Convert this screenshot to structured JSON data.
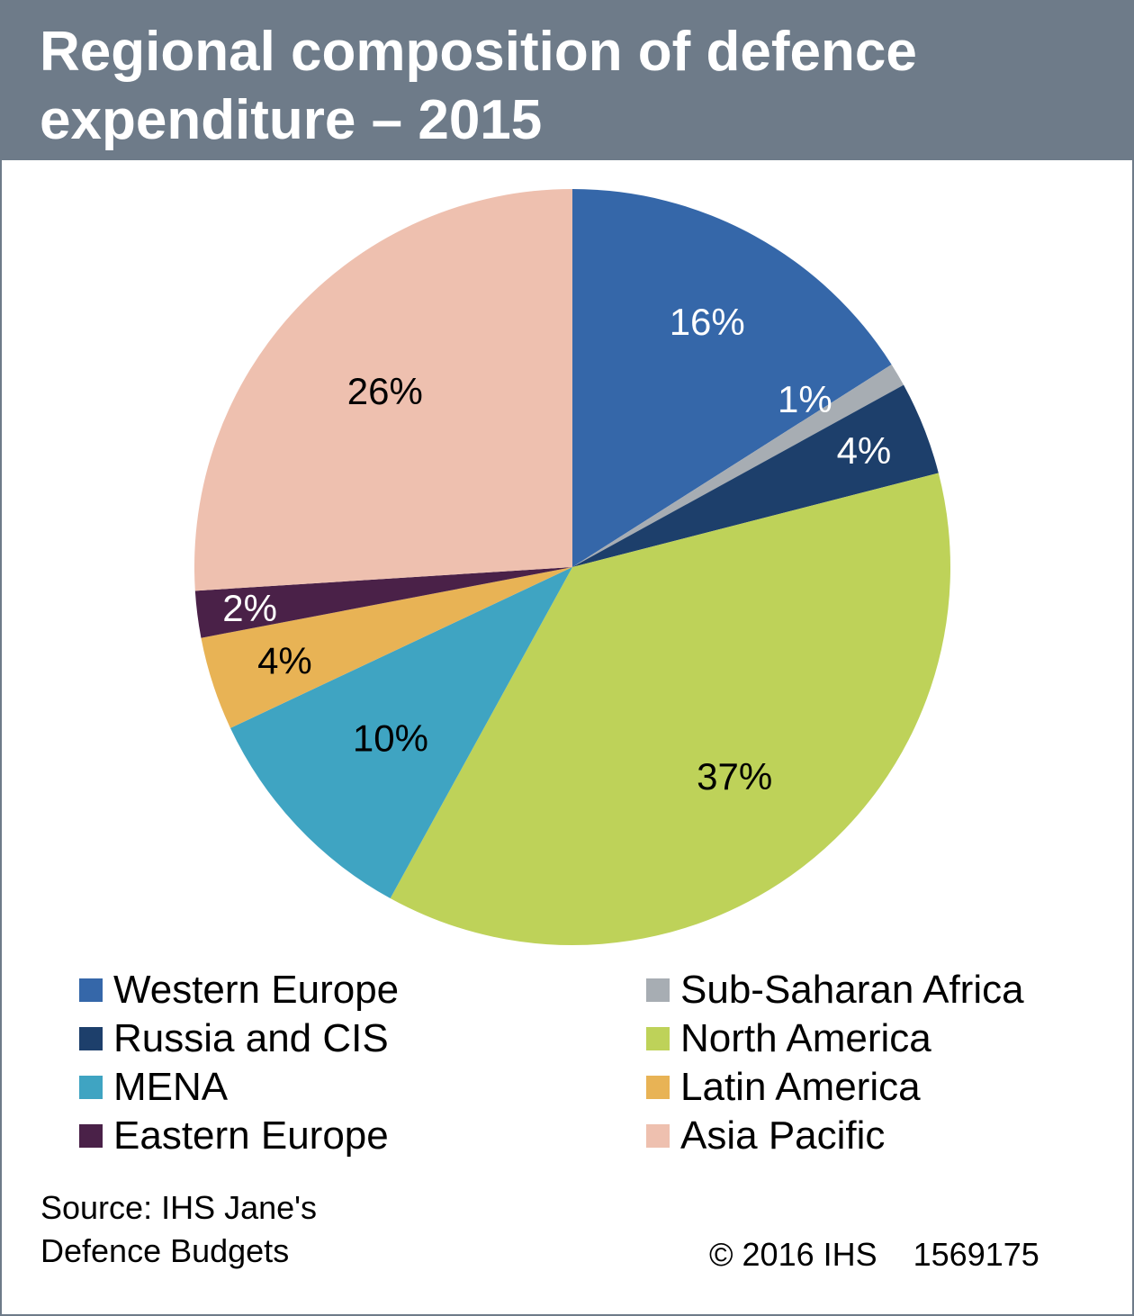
{
  "chart_data": {
    "type": "pie",
    "title": "Regional composition of defence expenditure – 2015",
    "start_angle_deg": 0,
    "direction": "clockwise",
    "legend_position": "bottom",
    "slices": [
      {
        "name": "Western Europe",
        "value": 16,
        "label": "16%",
        "color": "#3567a9",
        "label_color": "#ffffff"
      },
      {
        "name": "Sub-Saharan Africa",
        "value": 1,
        "label": "1%",
        "color": "#a7adb3",
        "label_color": "#ffffff"
      },
      {
        "name": "Russia and CIS",
        "value": 4,
        "label": "4%",
        "color": "#1d3f6b",
        "label_color": "#ffffff"
      },
      {
        "name": "North America",
        "value": 37,
        "label": "37%",
        "color": "#bed259",
        "label_color": "#000000"
      },
      {
        "name": "MENA",
        "value": 10,
        "label": "10%",
        "color": "#3fa4c2",
        "label_color": "#000000"
      },
      {
        "name": "Latin America",
        "value": 4,
        "label": "4%",
        "color": "#e8b355",
        "label_color": "#000000"
      },
      {
        "name": "Eastern Europe",
        "value": 2,
        "label": "2%",
        "color": "#4a2148",
        "label_color": "#ffffff"
      },
      {
        "name": "Asia Pacific",
        "value": 26,
        "label": "26%",
        "color": "#eec0af",
        "label_color": "#000000"
      }
    ]
  },
  "legend_order": [
    "Western Europe",
    "Sub-Saharan Africa",
    "Russia and CIS",
    "North America",
    "MENA",
    "Latin America",
    "Eastern Europe",
    "Asia Pacific"
  ],
  "footer": {
    "source_line1": "Source: IHS Jane's",
    "source_line2": "Defence Budgets",
    "copyright": "© 2016 IHS    1569175"
  }
}
